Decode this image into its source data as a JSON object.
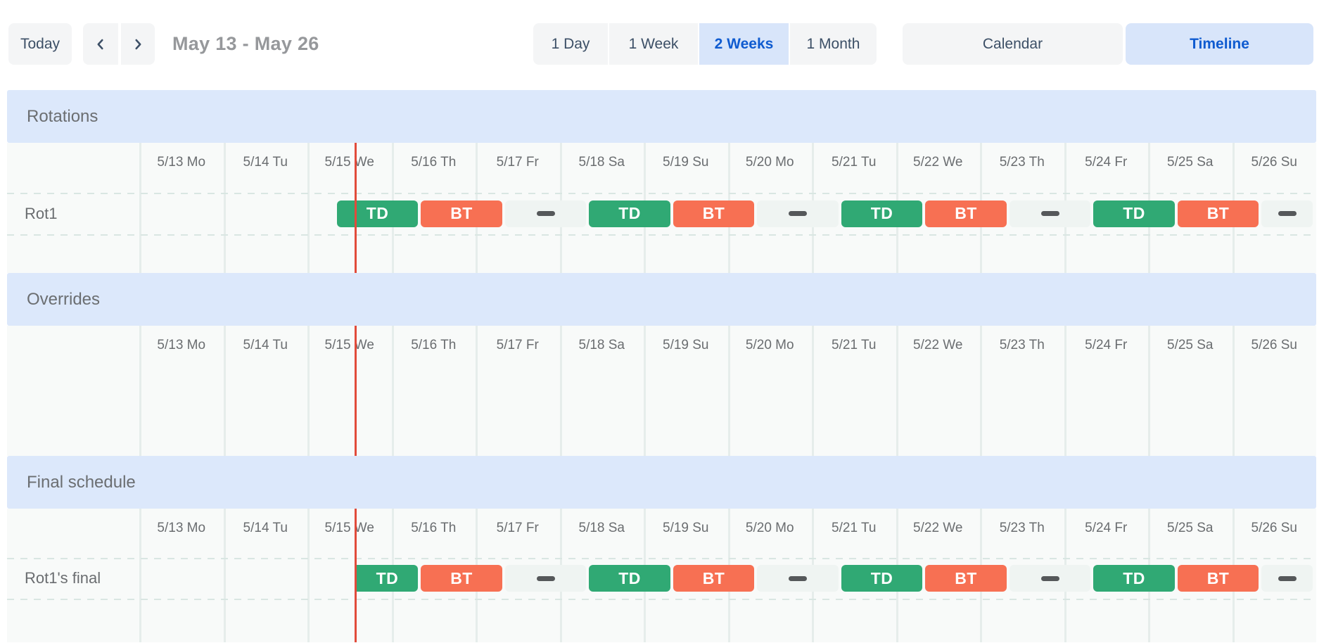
{
  "toolbar": {
    "today": "Today",
    "range_title": "May 13 - May 26",
    "zoom_levels": [
      {
        "label": "1 Day",
        "selected": false
      },
      {
        "label": "1 Week",
        "selected": false
      },
      {
        "label": "2 Weeks",
        "selected": true
      },
      {
        "label": "1 Month",
        "selected": false
      }
    ],
    "view_modes": [
      {
        "label": "Calendar",
        "selected": false
      },
      {
        "label": "Timeline",
        "selected": true
      }
    ]
  },
  "timeline": {
    "dates": [
      "5/13 Mo",
      "5/14 Tu",
      "5/15 We",
      "5/16 Th",
      "5/17 Fr",
      "5/18 Sa",
      "5/19 Su",
      "5/20 Mo",
      "5/21 Tu",
      "5/22 We",
      "5/23 Th",
      "5/24 Fr",
      "5/25 Sa",
      "5/26 Su"
    ],
    "now_marker_day": 2.566,
    "sections": [
      {
        "title": "Rotations",
        "rows": [
          {
            "label": "Rot1",
            "blocks": [
              {
                "kind": "shift",
                "label": "TD",
                "palette": "td",
                "start_day": 2.333,
                "days": 1.0
              },
              {
                "kind": "shift",
                "label": "BT",
                "palette": "bt",
                "start_day": 3.333,
                "days": 1.0
              },
              {
                "kind": "gap",
                "start_day": 4.333,
                "days": 1.0
              },
              {
                "kind": "shift",
                "label": "TD",
                "palette": "td",
                "start_day": 5.333,
                "days": 1.0
              },
              {
                "kind": "shift",
                "label": "BT",
                "palette": "bt",
                "start_day": 6.333,
                "days": 1.0
              },
              {
                "kind": "gap",
                "start_day": 7.333,
                "days": 1.0
              },
              {
                "kind": "shift",
                "label": "TD",
                "palette": "td",
                "start_day": 8.333,
                "days": 1.0
              },
              {
                "kind": "shift",
                "label": "BT",
                "palette": "bt",
                "start_day": 9.333,
                "days": 1.0
              },
              {
                "kind": "gap",
                "start_day": 10.333,
                "days": 1.0
              },
              {
                "kind": "shift",
                "label": "TD",
                "palette": "td",
                "start_day": 11.333,
                "days": 1.0
              },
              {
                "kind": "shift",
                "label": "BT",
                "palette": "bt",
                "start_day": 12.333,
                "days": 1.0
              },
              {
                "kind": "gap",
                "start_day": 13.333,
                "days": 0.64
              }
            ]
          }
        ]
      },
      {
        "title": "Overrides",
        "rows": []
      },
      {
        "title": "Final schedule",
        "rows": [
          {
            "label": "Rot1's final",
            "blocks": [
              {
                "kind": "shift",
                "label": "TD",
                "palette": "td",
                "start_day": 2.566,
                "days": 0.767,
                "flat_start": true
              },
              {
                "kind": "shift",
                "label": "BT",
                "palette": "bt",
                "start_day": 3.333,
                "days": 1.0
              },
              {
                "kind": "gap",
                "start_day": 4.333,
                "days": 1.0
              },
              {
                "kind": "shift",
                "label": "TD",
                "palette": "td",
                "start_day": 5.333,
                "days": 1.0
              },
              {
                "kind": "shift",
                "label": "BT",
                "palette": "bt",
                "start_day": 6.333,
                "days": 1.0
              },
              {
                "kind": "gap",
                "start_day": 7.333,
                "days": 1.0
              },
              {
                "kind": "shift",
                "label": "TD",
                "palette": "td",
                "start_day": 8.333,
                "days": 1.0
              },
              {
                "kind": "shift",
                "label": "BT",
                "palette": "bt",
                "start_day": 9.333,
                "days": 1.0
              },
              {
                "kind": "gap",
                "start_day": 10.333,
                "days": 1.0
              },
              {
                "kind": "shift",
                "label": "TD",
                "palette": "td",
                "start_day": 11.333,
                "days": 1.0
              },
              {
                "kind": "shift",
                "label": "BT",
                "palette": "bt",
                "start_day": 12.333,
                "days": 1.0
              },
              {
                "kind": "gap",
                "start_day": 13.333,
                "days": 0.64
              }
            ]
          }
        ]
      }
    ]
  },
  "theme": {
    "accent": "#0f5bd0",
    "accent_bg": "#d8e5fa",
    "button_bg": "#f4f5f6",
    "button_text": "#3c4f66",
    "title_text": "#96989b",
    "header_bg": "#dce8fb",
    "header_text": "#6b6e71",
    "grid_bg": "#f8faf9",
    "grid_border": "#e6edeb",
    "grid_dash": "#d9e6e2",
    "muted_text": "#6a6d70",
    "shift_td": "#30a974",
    "shift_bt": "#f77053",
    "gap_bg": "#eff4f2",
    "gap_dash": "#55585a",
    "now_line": "#e14b3b"
  }
}
